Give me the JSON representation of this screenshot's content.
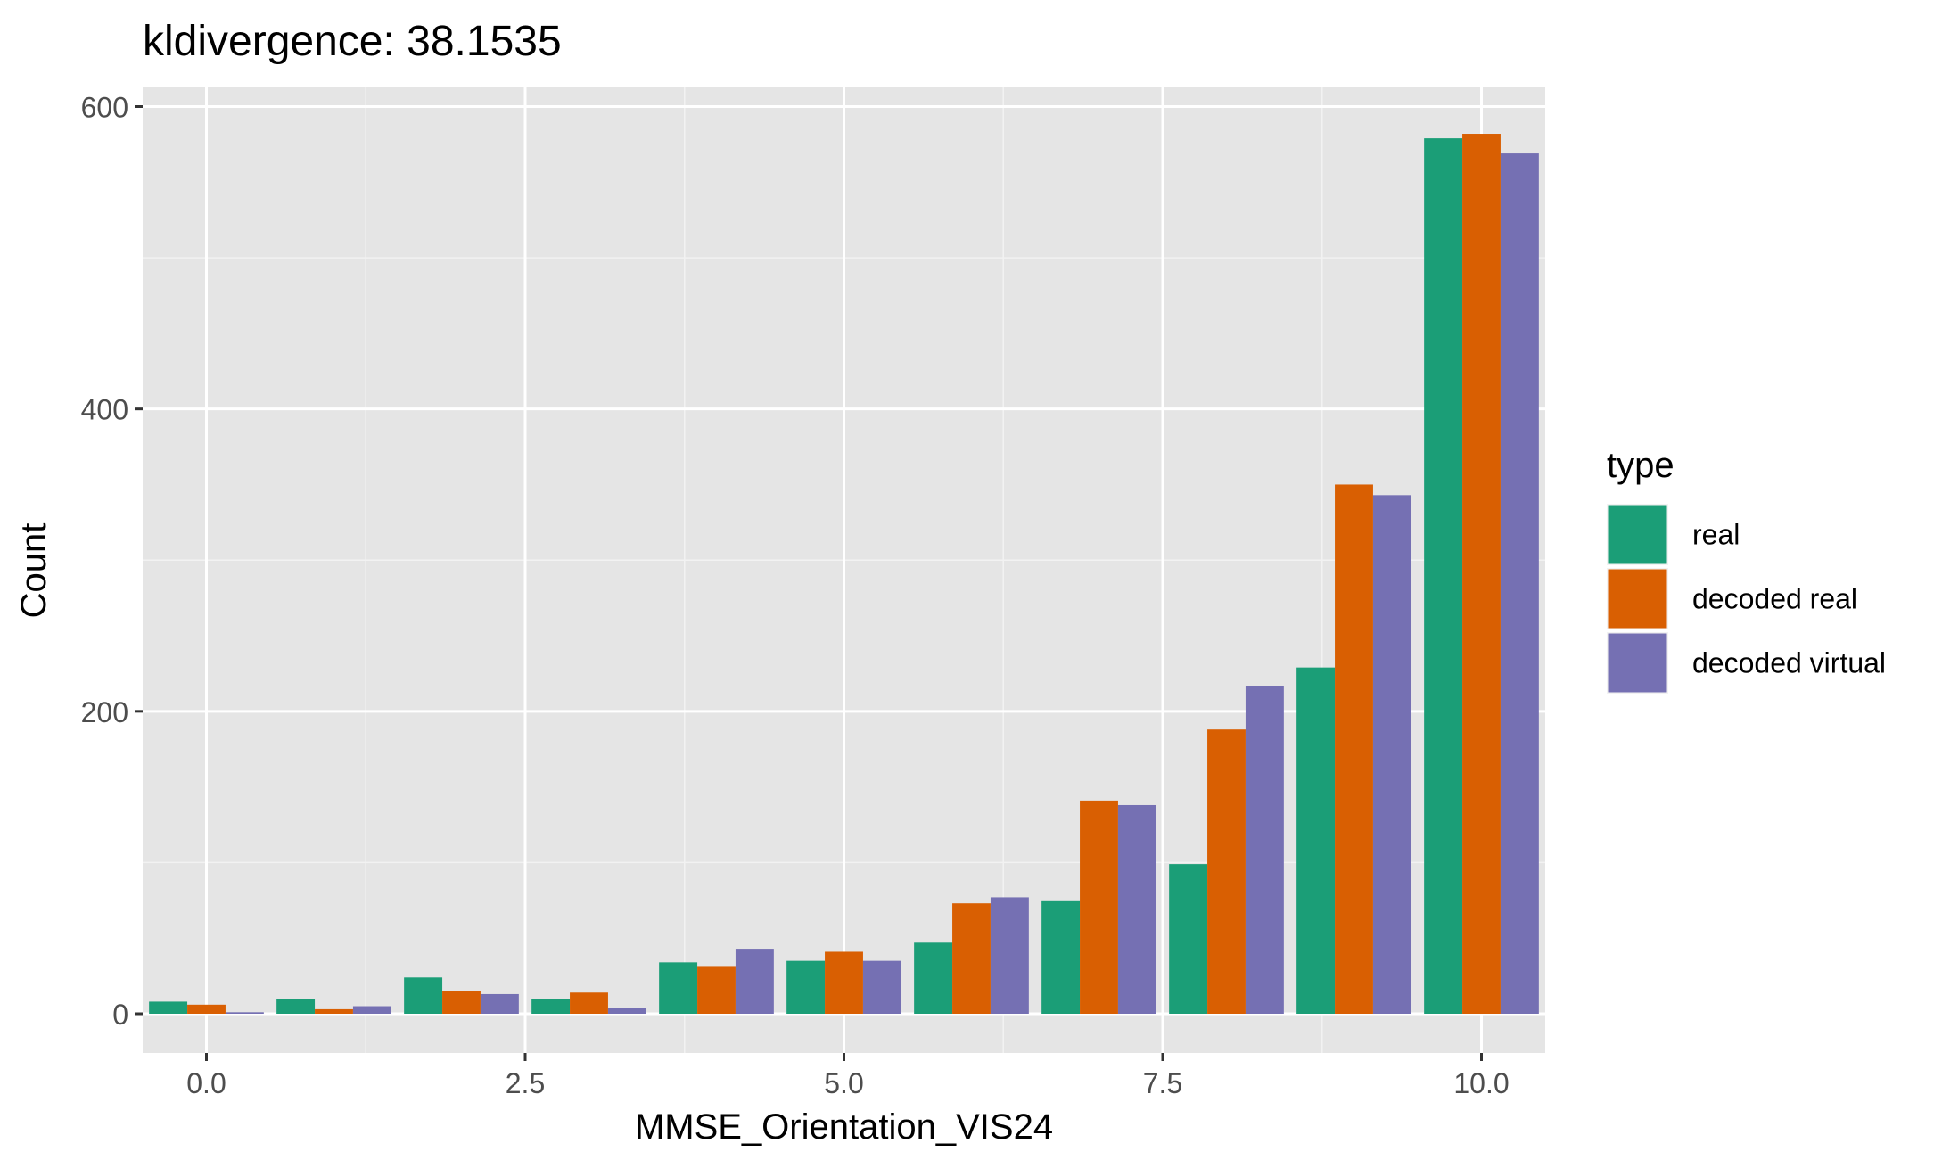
{
  "chart_data": {
    "type": "bar",
    "title": "kldivergence: 38.1535",
    "xlabel": "MMSE_Orientation_VIS24",
    "ylabel": "Count",
    "x": [
      0,
      1,
      2,
      3,
      4,
      5,
      6,
      7,
      8,
      9,
      10
    ],
    "xlim": [
      -0.5,
      10.5
    ],
    "ylim": [
      0,
      600
    ],
    "xticks": [
      0,
      2.5,
      5,
      7.5,
      10
    ],
    "xtick_labels": [
      "0.0",
      "2.5",
      "5.0",
      "7.5",
      "10.0"
    ],
    "yticks": [
      0,
      200,
      400,
      600
    ],
    "ytick_labels": [
      "0",
      "200",
      "400",
      "600"
    ],
    "grid": true,
    "legend": {
      "title": "type",
      "placement": "right"
    },
    "series": [
      {
        "name": "real",
        "color": "#1B9E77",
        "values": [
          8,
          10,
          24,
          10,
          34,
          35,
          47,
          75,
          99,
          229,
          579
        ]
      },
      {
        "name": "decoded real",
        "color": "#D95F02",
        "values": [
          6,
          3,
          15,
          14,
          31,
          41,
          73,
          141,
          188,
          350,
          582
        ]
      },
      {
        "name": "decoded virtual",
        "color": "#7570B3",
        "values": [
          1,
          5,
          13,
          4,
          43,
          35,
          77,
          138,
          217,
          343,
          569
        ]
      }
    ]
  }
}
